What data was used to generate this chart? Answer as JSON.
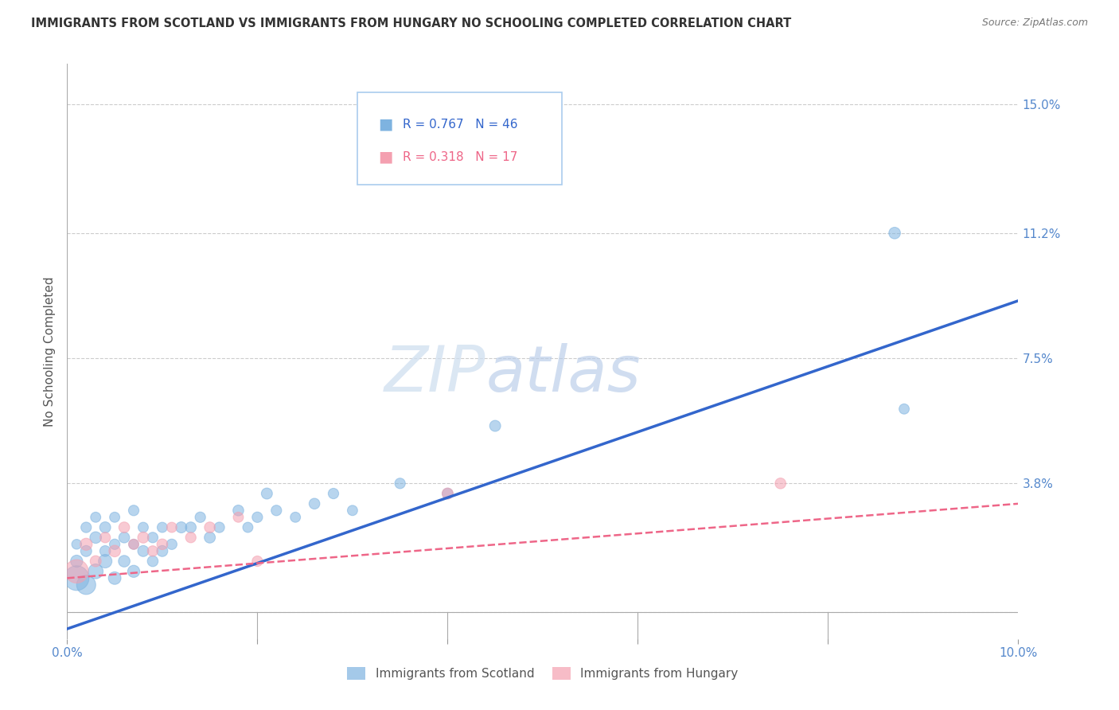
{
  "title": "IMMIGRANTS FROM SCOTLAND VS IMMIGRANTS FROM HUNGARY NO SCHOOLING COMPLETED CORRELATION CHART",
  "source": "Source: ZipAtlas.com",
  "ylabel": "No Schooling Completed",
  "xlim": [
    0,
    0.1
  ],
  "ylim": [
    -0.008,
    0.162
  ],
  "xticks": [
    0.0,
    0.02,
    0.04,
    0.06,
    0.08,
    0.1
  ],
  "xticklabels": [
    "0.0%",
    "",
    "",
    "",
    "",
    "10.0%"
  ],
  "ytick_positions": [
    0.0,
    0.038,
    0.075,
    0.112,
    0.15
  ],
  "ytick_labels": [
    "",
    "3.8%",
    "7.5%",
    "11.2%",
    "15.0%"
  ],
  "scotland_color": "#7EB3E0",
  "hungary_color": "#F4A0B0",
  "scotland_line_color": "#3366CC",
  "hungary_line_color": "#EE6688",
  "scotland_R": 0.767,
  "scotland_N": 46,
  "hungary_R": 0.318,
  "hungary_N": 17,
  "watermark": "ZIPatlas",
  "scotland_points_x": [
    0.001,
    0.001,
    0.001,
    0.002,
    0.002,
    0.002,
    0.003,
    0.003,
    0.003,
    0.004,
    0.004,
    0.004,
    0.005,
    0.005,
    0.005,
    0.006,
    0.006,
    0.007,
    0.007,
    0.007,
    0.008,
    0.008,
    0.009,
    0.009,
    0.01,
    0.01,
    0.011,
    0.012,
    0.013,
    0.014,
    0.015,
    0.016,
    0.018,
    0.019,
    0.02,
    0.021,
    0.022,
    0.024,
    0.026,
    0.028,
    0.03,
    0.035,
    0.04,
    0.045,
    0.087,
    0.088
  ],
  "scotland_points_y": [
    0.01,
    0.015,
    0.02,
    0.008,
    0.018,
    0.025,
    0.012,
    0.022,
    0.028,
    0.015,
    0.018,
    0.025,
    0.01,
    0.02,
    0.028,
    0.015,
    0.022,
    0.012,
    0.02,
    0.03,
    0.018,
    0.025,
    0.015,
    0.022,
    0.018,
    0.025,
    0.02,
    0.025,
    0.025,
    0.028,
    0.022,
    0.025,
    0.03,
    0.025,
    0.028,
    0.035,
    0.03,
    0.028,
    0.032,
    0.035,
    0.03,
    0.038,
    0.035,
    0.055,
    0.112,
    0.06
  ],
  "hungary_points_x": [
    0.001,
    0.002,
    0.003,
    0.004,
    0.005,
    0.006,
    0.007,
    0.008,
    0.009,
    0.01,
    0.011,
    0.013,
    0.015,
    0.018,
    0.02,
    0.04,
    0.075
  ],
  "hungary_points_y": [
    0.012,
    0.02,
    0.015,
    0.022,
    0.018,
    0.025,
    0.02,
    0.022,
    0.018,
    0.02,
    0.025,
    0.022,
    0.025,
    0.028,
    0.015,
    0.035,
    0.038
  ],
  "scotland_sizes": [
    500,
    120,
    80,
    300,
    100,
    90,
    180,
    110,
    85,
    150,
    95,
    100,
    130,
    90,
    85,
    110,
    95,
    120,
    85,
    90,
    100,
    85,
    95,
    90,
    100,
    85,
    90,
    100,
    95,
    90,
    100,
    90,
    95,
    85,
    90,
    100,
    90,
    85,
    95,
    90,
    85,
    90,
    95,
    100,
    110,
    85
  ],
  "hungary_sizes": [
    450,
    120,
    100,
    90,
    110,
    95,
    85,
    100,
    90,
    95,
    85,
    90,
    95,
    85,
    90,
    100,
    95
  ],
  "blue_line_x0": 0.0,
  "blue_line_y0": -0.005,
  "blue_line_x1": 0.1,
  "blue_line_y1": 0.092,
  "pink_line_x0": 0.0,
  "pink_line_y0": 0.01,
  "pink_line_x1": 0.1,
  "pink_line_y1": 0.032
}
